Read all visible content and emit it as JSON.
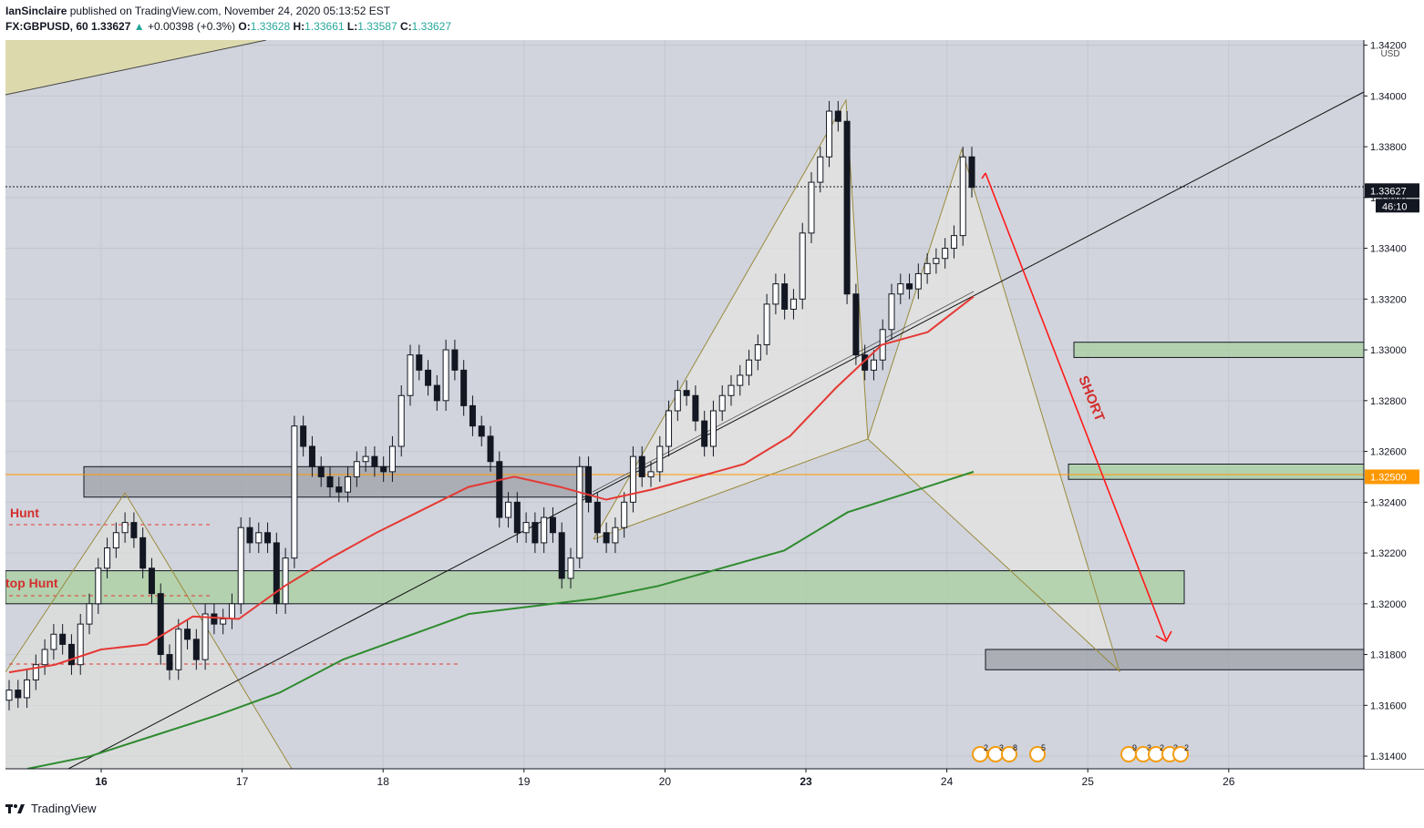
{
  "header": {
    "author": "IanSinclaire",
    "published_text": "published on TradingView.com, November 24, 2020 05:13:52 EST",
    "symbol": "FX:GBPUSD, 60",
    "last": "1.33627",
    "change": "+0.00398 (+0.3%)",
    "o_label": "O:",
    "o_value": "1.33628",
    "h_label": "H:",
    "h_value": "1.33661",
    "l_label": "L:",
    "l_value": "1.33587",
    "c_label": "C:",
    "c_value": "1.33627"
  },
  "footer": {
    "brand": "TradingView"
  },
  "chart_data": {
    "type": "candlestick",
    "currency": "USD",
    "ylim": [
      1.3135,
      1.3422
    ],
    "x_ticks": [
      "16",
      "17",
      "18",
      "19",
      "20",
      "23",
      "24",
      "25",
      "26"
    ],
    "y_ticks": [
      "1.34200",
      "1.34000",
      "1.33800",
      "1.33600",
      "1.33400",
      "1.33200",
      "1.33000",
      "1.32800",
      "1.32600",
      "1.32400",
      "1.32200",
      "1.32000",
      "1.31800",
      "1.31600",
      "1.31400"
    ],
    "price_labels": [
      {
        "value": 1.33627,
        "text": "1.33627",
        "countdown": "46:10",
        "color": "#131722"
      },
      {
        "value": 1.325,
        "text": "1.32500",
        "color": "#ff9800"
      }
    ],
    "annotations": [
      {
        "text": "Hunt",
        "color": "#d32f2f"
      },
      {
        "text": "top Hunt",
        "color": "#d32f2f"
      },
      {
        "text": "SHORT",
        "color": "#d32f2f"
      }
    ],
    "zones": [
      {
        "from": 1.3242,
        "to": 1.3254,
        "color": "grey"
      },
      {
        "from": 1.32,
        "to": 1.3213,
        "color": "green"
      },
      {
        "from": 1.3297,
        "to": 1.3303,
        "color": "green"
      },
      {
        "from": 1.3249,
        "to": 1.3255,
        "color": "green"
      },
      {
        "from": 1.3174,
        "to": 1.3182,
        "color": "grey"
      }
    ],
    "moving_averages": [
      {
        "color": "#e53935",
        "values": [
          1.3173,
          1.3176,
          1.3182,
          1.3184,
          1.3195,
          1.3194,
          1.3207,
          1.3218,
          1.3228,
          1.3237,
          1.3246,
          1.325,
          1.3246,
          1.3241,
          1.3245,
          1.325,
          1.3255,
          1.3266,
          1.3285,
          1.3302,
          1.3307,
          1.3321
        ]
      },
      {
        "color": "#2e8b2e",
        "values": [
          1.3135,
          1.314,
          1.3148,
          1.3156,
          1.3165,
          1.3178,
          1.3187,
          1.3196,
          1.3199,
          1.3202,
          1.3207,
          1.3214,
          1.3221,
          1.3236,
          1.3244,
          1.3252
        ]
      }
    ],
    "event_badges": [
      "2",
      "3",
      "8",
      "5",
      "9",
      "3",
      "2",
      "3",
      "2"
    ],
    "series": [
      {
        "name": "",
        "values": [
          1.3166,
          1.3163,
          1.317,
          1.3176,
          1.3182,
          1.3188,
          1.3184,
          1.3176,
          1.3192,
          1.32,
          1.3214,
          1.3222,
          1.3228,
          1.3232,
          1.3226,
          1.3214,
          1.3204,
          1.318,
          1.3174,
          1.319,
          1.3186,
          1.3178,
          1.3196,
          1.3192,
          1.3194,
          1.32,
          1.323,
          1.3224,
          1.3228,
          1.3224,
          1.32,
          1.3218,
          1.327,
          1.3262,
          1.3254,
          1.325,
          1.3246,
          1.3244,
          1.325,
          1.3256,
          1.3258,
          1.3254,
          1.3252,
          1.3262,
          1.3282,
          1.3298,
          1.3292,
          1.3286,
          1.328,
          1.33,
          1.3292,
          1.3278,
          1.327,
          1.3266,
          1.3256,
          1.3234,
          1.324,
          1.3228,
          1.3232,
          1.3224,
          1.3234,
          1.3228,
          1.321,
          1.3218,
          1.3254,
          1.324,
          1.3228,
          1.3224,
          1.323,
          1.324,
          1.3258,
          1.325,
          1.3252,
          1.3262,
          1.3276,
          1.3284,
          1.3282,
          1.3272,
          1.3262,
          1.3276,
          1.3282,
          1.3286,
          1.329,
          1.3296,
          1.3302,
          1.3318,
          1.3326,
          1.3316,
          1.332,
          1.3346,
          1.3366,
          1.3376,
          1.3394,
          1.339,
          1.3322,
          1.3298,
          1.3292,
          1.3296,
          1.3308,
          1.3322,
          1.3326,
          1.3324,
          1.333,
          1.3334,
          1.3336,
          1.334,
          1.3345,
          1.3376,
          1.3364
        ]
      }
    ]
  }
}
